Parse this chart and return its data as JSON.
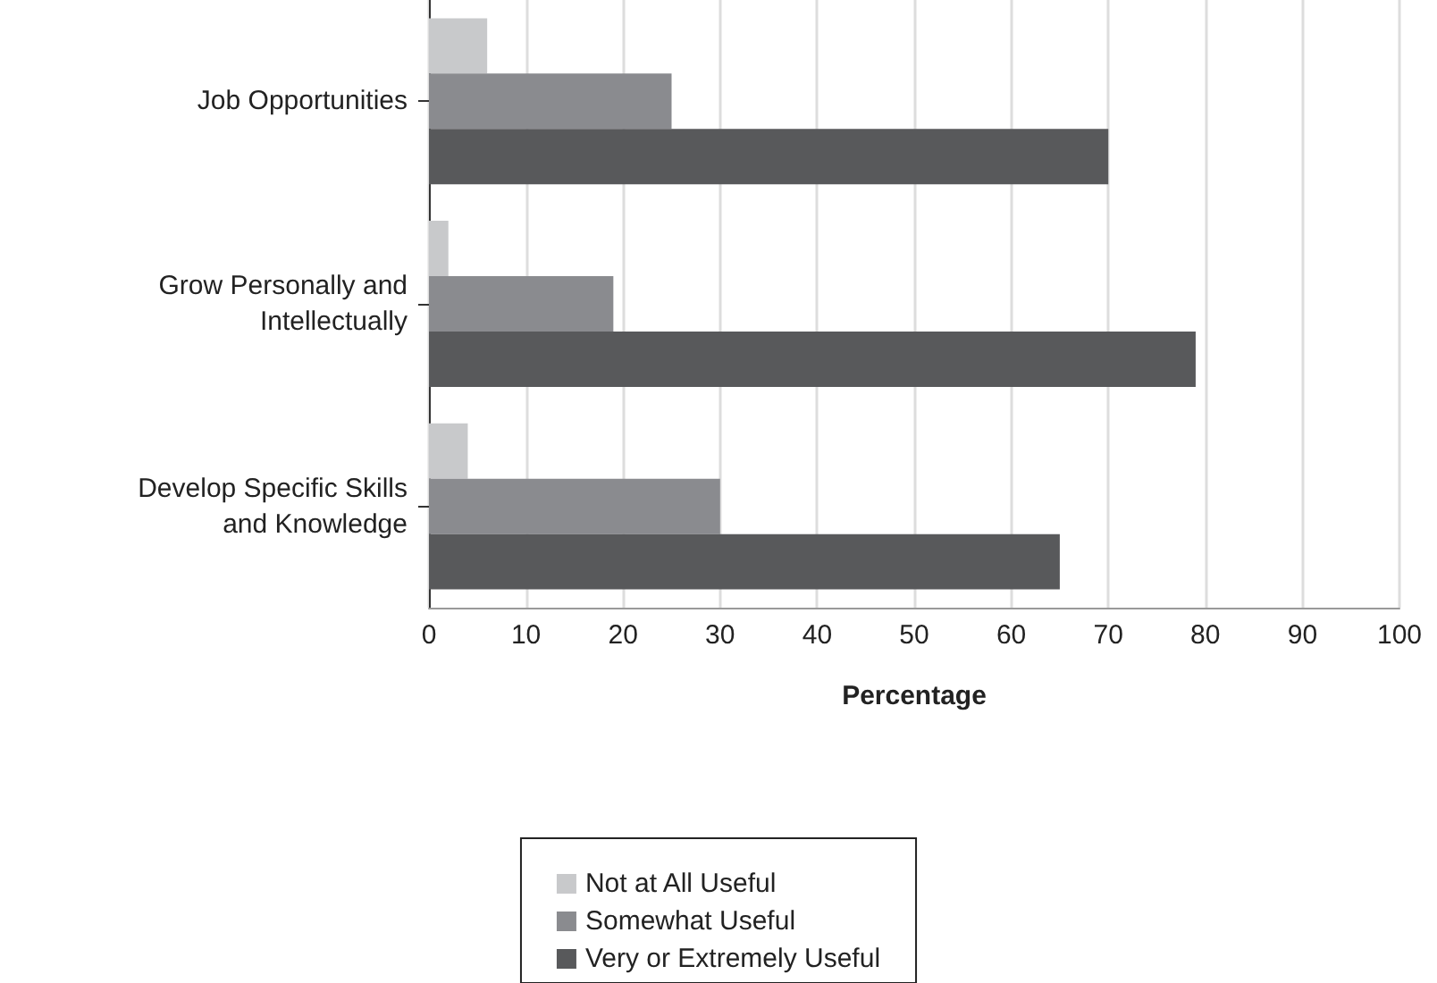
{
  "chart_data": {
    "type": "bar",
    "orientation": "horizontal",
    "xlabel": "Percentage",
    "categories": [
      "Job Opportunities",
      "Grow Personally and\nIntellectually",
      "Develop Specific Skills\nand Knowledge"
    ],
    "series": [
      {
        "name": "Not at All Useful",
        "color": "#c8c9cb",
        "values": [
          6,
          2,
          4
        ]
      },
      {
        "name": "Somewhat Useful",
        "color": "#8a8b8f",
        "values": [
          25,
          19,
          30
        ]
      },
      {
        "name": "Very or Extremely Useful",
        "color": "#58595b",
        "values": [
          70,
          79,
          65
        ]
      }
    ],
    "xlim": [
      0,
      100
    ],
    "xticks": [
      0,
      10,
      20,
      30,
      40,
      50,
      60,
      70,
      80,
      90,
      100
    ],
    "grid": "x",
    "legend": "bottom"
  }
}
